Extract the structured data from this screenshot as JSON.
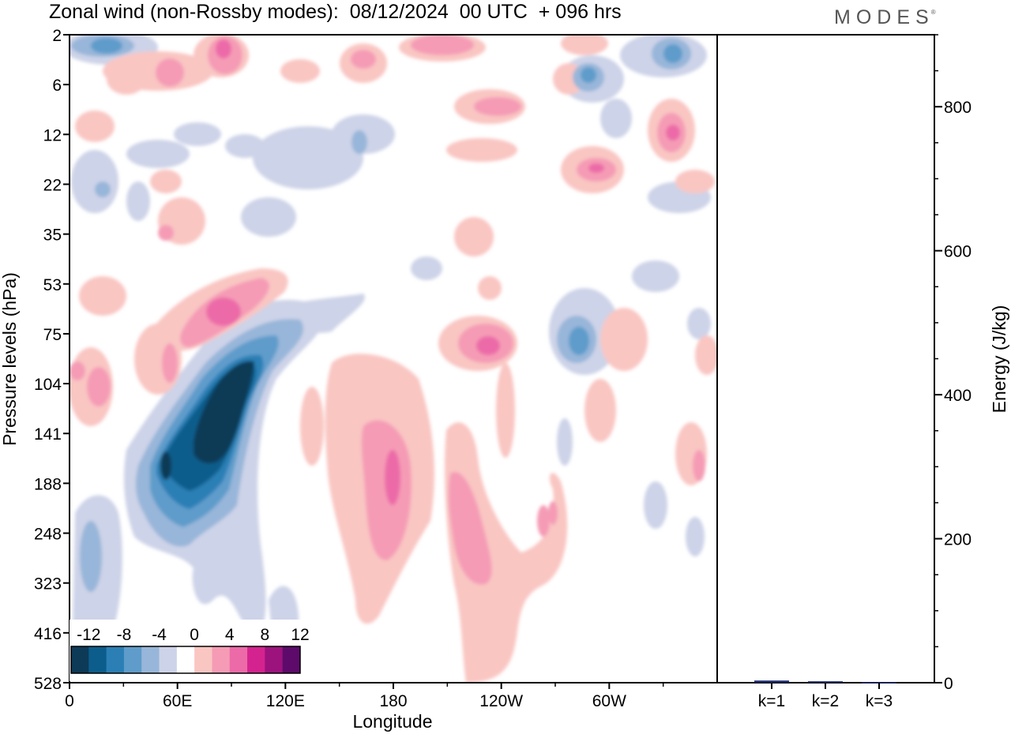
{
  "header": {
    "title": "Zonal wind (non-Rossby modes):  08/12/2024  00 UTC  + 096 hrs",
    "brand": "MODES"
  },
  "chart_data": [
    {
      "type": "heatmap",
      "title": "Zonal wind (non-Rossby modes):  08/12/2024  00 UTC  + 096 hrs",
      "xlabel": "Longitude",
      "ylabel": "Pressure levels (hPa)",
      "x_ticks": [
        "0",
        "60E",
        "120E",
        "180",
        "120W",
        "60W"
      ],
      "x_tick_degrees": [
        0,
        60,
        120,
        180,
        240,
        300
      ],
      "xlim": [
        0,
        360
      ],
      "y_ticks": [
        "2",
        "6",
        "12",
        "22",
        "35",
        "53",
        "75",
        "104",
        "141",
        "188",
        "248",
        "323",
        "416",
        "528"
      ],
      "y_order": "top-to-bottom",
      "colorbar": {
        "labels": [
          "-12",
          "-8",
          "-4",
          "0",
          "4",
          "8",
          "12"
        ],
        "levels": [
          -14,
          -12,
          -10,
          -8,
          -6,
          -4,
          -2,
          2,
          4,
          6,
          8,
          10,
          12,
          14
        ],
        "colors": [
          "#0d3a57",
          "#0c5d8c",
          "#2b7fb5",
          "#5f9ccb",
          "#98b6d9",
          "#cdd3e8",
          "#ffffff",
          "#f9c6c2",
          "#f59bb5",
          "#ec6aa8",
          "#d4238f",
          "#9c137e",
          "#5d0a6b"
        ]
      },
      "features": [
        {
          "kind": "easterly-max",
          "lon": 85,
          "level": 104,
          "value": -14
        },
        {
          "kind": "easterly",
          "lon": 53,
          "level": 188,
          "value": -12
        },
        {
          "kind": "westerly",
          "lon": 90,
          "level": 53,
          "value": 8
        },
        {
          "kind": "westerly",
          "lon": 180,
          "level": 188,
          "value": 8
        },
        {
          "kind": "westerly",
          "lon": 238,
          "level": 75,
          "value": 8
        },
        {
          "kind": "westerly",
          "lon": 200,
          "level": 248,
          "value": 6
        },
        {
          "kind": "westerly",
          "lon": 335,
          "level": 12,
          "value": 8
        },
        {
          "kind": "easterly",
          "lon": 15,
          "level": 248,
          "value": -6
        },
        {
          "kind": "easterly",
          "lon": 282,
          "level": 75,
          "value": -6
        },
        {
          "kind": "easterly",
          "lon": 327,
          "level": 2,
          "value": -6
        }
      ]
    },
    {
      "type": "bar",
      "categories": [
        "k=1",
        "k=2",
        "k=3"
      ],
      "values": [
        3,
        2,
        1
      ],
      "ylabel": "Energy (J/kg)",
      "ylim": [
        0,
        900
      ],
      "y_ticks": [
        "0",
        "200",
        "400",
        "600",
        "800"
      ],
      "bar_color": "#1a2a6c"
    }
  ]
}
